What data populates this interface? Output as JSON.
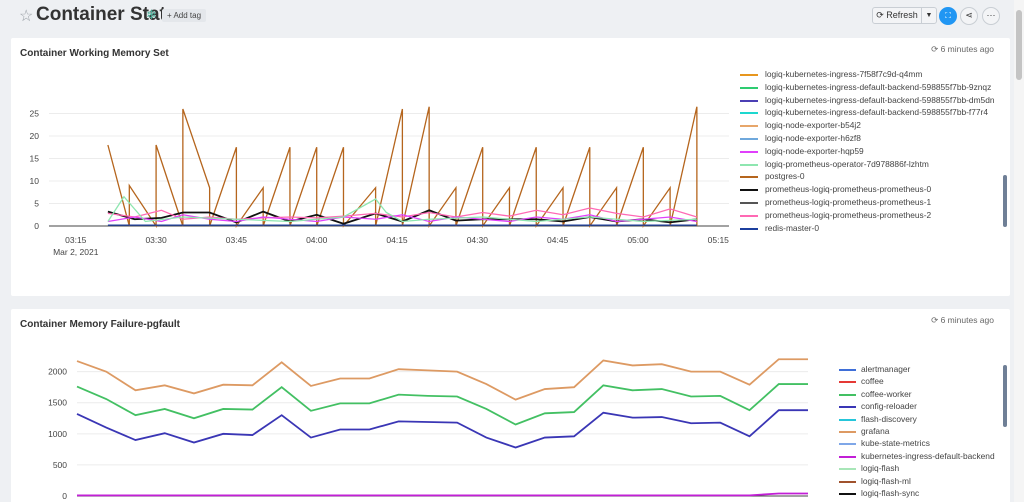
{
  "header": {
    "title": "Container Stats",
    "add_tag": "+ Add tag",
    "refresh": "Refresh",
    "icons": {
      "star": "star-icon",
      "tag": "snowflake-icon",
      "refresh": "refresh-icon",
      "dropdown": "caret-down-icon",
      "fullscreen": "fullscreen-icon",
      "share": "share-icon",
      "more": "ellipsis-icon"
    }
  },
  "panels": [
    {
      "title": "Container Working Memory Set",
      "updated": "6 minutes ago",
      "legend": [
        {
          "name": "logiq-kubernetes-ingress-7f58f7c9d-q4mm",
          "color": "#e7961e"
        },
        {
          "name": "logiq-kubernetes-ingress-default-backend-598855f7bb-9znqz",
          "color": "#2ecc71"
        },
        {
          "name": "logiq-kubernetes-ingress-default-backend-598855f7bb-dm5dn",
          "color": "#4b3fb4"
        },
        {
          "name": "logiq-kubernetes-ingress-default-backend-598855f7bb-f77r4",
          "color": "#1dd8cf"
        },
        {
          "name": "logiq-node-exporter-b54j2",
          "color": "#e7a66a"
        },
        {
          "name": "logiq-node-exporter-h6zf8",
          "color": "#6fa8dc"
        },
        {
          "name": "logiq-node-exporter-hqp59",
          "color": "#e040fb"
        },
        {
          "name": "logiq-prometheus-operator-7d978886f-lzhtm",
          "color": "#8ee6b0"
        },
        {
          "name": "postgres-0",
          "color": "#b5651d"
        },
        {
          "name": "prometheus-logiq-prometheus-prometheus-0",
          "color": "#111111"
        },
        {
          "name": "prometheus-logiq-prometheus-prometheus-1",
          "color": "#555555"
        },
        {
          "name": "prometheus-logiq-prometheus-prometheus-2",
          "color": "#ff69b4"
        },
        {
          "name": "redis-master-0",
          "color": "#1c3f9e"
        }
      ]
    },
    {
      "title": "Container Memory Failure-pgfault",
      "updated": "6 minutes ago",
      "legend": [
        {
          "name": "alertmanager",
          "color": "#3f6fd8"
        },
        {
          "name": "coffee",
          "color": "#e53935"
        },
        {
          "name": "coffee-worker",
          "color": "#43c063"
        },
        {
          "name": "config-reloader",
          "color": "#3a36b5"
        },
        {
          "name": "flash-discovery",
          "color": "#26c6da"
        },
        {
          "name": "grafana",
          "color": "#dd9a63"
        },
        {
          "name": "kube-state-metrics",
          "color": "#7fa7e8"
        },
        {
          "name": "kubernetes-ingress-default-backend",
          "color": "#c21fd6"
        },
        {
          "name": "logiq-flash",
          "color": "#a8e6b8"
        },
        {
          "name": "logiq-flash-ml",
          "color": "#a0522d"
        },
        {
          "name": "logiq-flash-sync",
          "color": "#111111"
        }
      ]
    }
  ],
  "chart_data": [
    {
      "type": "line",
      "title": "Container Working Memory Set",
      "x_ticks": [
        "03:15",
        "03:30",
        "03:45",
        "04:00",
        "04:15",
        "04:30",
        "04:45",
        "05:00",
        "05:15"
      ],
      "x_date": "Mar 2, 2021",
      "x_range": [
        "03:10",
        "05:17"
      ],
      "y_ticks": [
        0,
        5,
        10,
        15,
        20,
        25
      ],
      "ylim": [
        0,
        28
      ],
      "series": [
        {
          "name": "postgres-0",
          "color": "#b5651d",
          "x": [
            11,
            15,
            15,
            20,
            20,
            25,
            25,
            30,
            30,
            35,
            35,
            40,
            40,
            45,
            45,
            50,
            50,
            55,
            55,
            61,
            61,
            66,
            66,
            71,
            71,
            76,
            76,
            81,
            81,
            86,
            86,
            91,
            91,
            96,
            96,
            101,
            101,
            106,
            106,
            111,
            111,
            116,
            116,
            121,
            121
          ],
          "y": [
            18,
            0,
            9,
            0,
            18,
            0,
            26,
            8.5,
            0,
            17.5,
            0,
            8.5,
            0,
            17.5,
            0,
            17.5,
            0,
            17.5,
            0,
            8.5,
            0,
            26,
            0,
            26.5,
            0,
            8.5,
            0,
            17.5,
            0,
            8.5,
            0,
            17.5,
            0,
            8.5,
            0,
            17.5,
            0,
            8.5,
            0,
            17.5,
            0,
            8.5,
            0,
            26.5,
            0
          ]
        },
        {
          "name": "prometheus-logiq-prometheus-prometheus-0",
          "color": "#111111",
          "x": [
            11,
            16,
            21,
            25,
            30,
            35,
            40,
            45,
            50,
            55,
            61,
            66,
            71,
            76,
            81,
            86,
            91,
            96,
            101,
            106,
            111,
            116,
            121
          ],
          "y": [
            3.2,
            1.5,
            1.8,
            3,
            3,
            0.8,
            3.2,
            1,
            2.5,
            0.5,
            2.8,
            1,
            3.5,
            1.2,
            1.5,
            1.5,
            1.5,
            1,
            2,
            1,
            1.5,
            0.8,
            1.5
          ]
        },
        {
          "name": "prometheus-logiq-prometheus-prometheus-2",
          "color": "#ff69b4",
          "x": [
            11,
            16,
            21,
            25,
            30,
            35,
            40,
            45,
            50,
            55,
            61,
            66,
            71,
            76,
            81,
            86,
            91,
            96,
            101,
            106,
            111,
            116,
            121
          ],
          "y": [
            2.8,
            2,
            3.5,
            1.5,
            2,
            1.5,
            1.8,
            2,
            1.8,
            2.2,
            2.8,
            2,
            3,
            2,
            3,
            2.2,
            3.5,
            2.5,
            4,
            2.8,
            2,
            3.8,
            2
          ]
        },
        {
          "name": "logiq-node-exporter-hqp59",
          "color": "#e040fb",
          "x": [
            11,
            16,
            21,
            25,
            30,
            35,
            40,
            45,
            50,
            55,
            61,
            66,
            71,
            76,
            81,
            86,
            91,
            96,
            101,
            106,
            111,
            116,
            121
          ],
          "y": [
            1,
            2,
            1,
            2.5,
            1.5,
            1,
            2,
            1.5,
            1,
            2,
            1.5,
            2.5,
            1,
            2,
            1.5,
            1,
            2,
            1.5,
            2.5,
            1,
            1.5,
            2,
            1
          ]
        },
        {
          "name": "logiq-prometheus-operator-7d978886f-lzhtm",
          "color": "#8ee6b0",
          "x": [
            11,
            14,
            18,
            25,
            35,
            45,
            55,
            61,
            63,
            66,
            71,
            81,
            91,
            101,
            111,
            121
          ],
          "y": [
            1,
            6.5,
            1,
            2,
            1.5,
            1,
            2,
            6,
            3,
            1,
            1.5,
            2,
            1,
            2,
            1,
            1.5
          ]
        },
        {
          "name": "redis-master-0",
          "color": "#1c3f9e",
          "x": [
            11,
            121
          ],
          "y": [
            0.2,
            0.2
          ]
        }
      ]
    },
    {
      "type": "line",
      "title": "Container Memory Failure-pgfault",
      "y_ticks": [
        0,
        500,
        1000,
        1500,
        2000
      ],
      "ylim": [
        0,
        2300
      ],
      "x": [
        0,
        1,
        2,
        3,
        4,
        5,
        6,
        7,
        8,
        9,
        10,
        11,
        12,
        13,
        14,
        15,
        16,
        17,
        18,
        19,
        20,
        21,
        22,
        23,
        24,
        25
      ],
      "series": [
        {
          "name": "grafana",
          "color": "#dd9a63",
          "values": [
            2170,
            2000,
            1700,
            1780,
            1650,
            1790,
            1780,
            2150,
            1770,
            1890,
            1890,
            2040,
            2020,
            2000,
            1800,
            1550,
            1720,
            1750,
            2180,
            2100,
            2120,
            2000,
            2000,
            1790,
            2200,
            2200
          ]
        },
        {
          "name": "coffee-worker",
          "color": "#43c063",
          "values": [
            1760,
            1560,
            1300,
            1400,
            1250,
            1400,
            1390,
            1750,
            1370,
            1490,
            1490,
            1630,
            1610,
            1600,
            1400,
            1150,
            1330,
            1350,
            1780,
            1700,
            1720,
            1600,
            1610,
            1380,
            1800,
            1800
          ]
        },
        {
          "name": "config-reloader",
          "color": "#3a36b5",
          "values": [
            1320,
            1100,
            900,
            1010,
            860,
            1000,
            980,
            1300,
            940,
            1070,
            1070,
            1200,
            1190,
            1180,
            940,
            780,
            940,
            960,
            1340,
            1260,
            1270,
            1170,
            1180,
            960,
            1380,
            1380
          ]
        },
        {
          "name": "kubernetes-ingress-default-backend",
          "color": "#c21fd6",
          "values": [
            10,
            10,
            10,
            10,
            10,
            10,
            10,
            10,
            10,
            10,
            10,
            10,
            10,
            10,
            10,
            10,
            10,
            10,
            10,
            10,
            10,
            10,
            10,
            10,
            40,
            40
          ]
        }
      ]
    }
  ]
}
